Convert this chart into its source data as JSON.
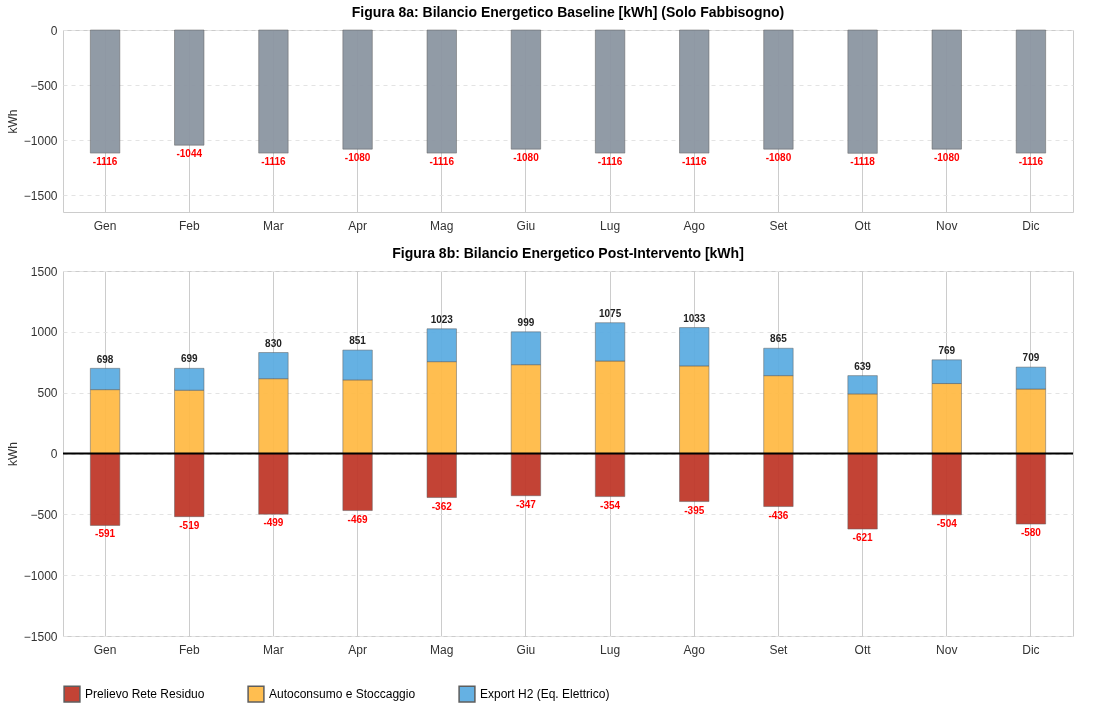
{
  "chart_data": [
    {
      "type": "bar",
      "title": "Figura 8a: Bilancio Energetico Baseline [kWh] (Solo Fabbisogno)",
      "ylabel": "kWh",
      "categories": [
        "Gen",
        "Feb",
        "Mar",
        "Apr",
        "Mag",
        "Giu",
        "Lug",
        "Ago",
        "Set",
        "Ott",
        "Nov",
        "Dic"
      ],
      "series": [
        {
          "color": "#8c96a2",
          "values": [
            -1116,
            -1044,
            -1116,
            -1080,
            -1116,
            -1080,
            -1116,
            -1116,
            -1080,
            -1118,
            -1080,
            -1116
          ]
        }
      ],
      "ylim": [
        -1650,
        0
      ],
      "yticks": [
        -1500,
        -1000,
        -500,
        0
      ],
      "grid": true,
      "data_labels": true,
      "legend": false
    },
    {
      "type": "bar",
      "title": "Figura 8b: Bilancio Energetico Post-Intervento [kWh]",
      "ylabel": "kWh",
      "stacked": true,
      "categories": [
        "Gen",
        "Feb",
        "Mar",
        "Apr",
        "Mag",
        "Giu",
        "Lug",
        "Ago",
        "Set",
        "Ott",
        "Nov",
        "Dic"
      ],
      "series": [
        {
          "name": "Prelievo Rete Residuo",
          "color": "#c0392b",
          "values": [
            -591,
            -519,
            -499,
            -469,
            -362,
            -347,
            -354,
            -395,
            -436,
            -621,
            -504,
            -580
          ],
          "value_labels": [
            "-591",
            "-519",
            "-499",
            "-469",
            "-362",
            "-347",
            "-354",
            "-395",
            "-436",
            "-621",
            "-504",
            "-580"
          ]
        },
        {
          "name": "Autoconsumo e Stoccaggio",
          "color": "#ffbb47",
          "values": [
            525,
            520,
            615,
            605,
            755,
            730,
            760,
            720,
            640,
            490,
            575,
            530
          ]
        },
        {
          "name": "Export H2 (Eq. Elettrico)",
          "color": "#5dade2",
          "values": [
            175,
            180,
            215,
            245,
            270,
            270,
            315,
            315,
            225,
            150,
            195,
            180
          ]
        }
      ],
      "annotations": [
        {
          "text": "698",
          "x": "Gen",
          "y": 698
        },
        {
          "text": "699",
          "x": "Feb",
          "y": 699
        },
        {
          "text": "830",
          "x": "Mar",
          "y": 830
        },
        {
          "text": "851",
          "x": "Apr",
          "y": 851
        },
        {
          "text": "1023",
          "x": "Mag",
          "y": 1023
        },
        {
          "text": "999",
          "x": "Giu",
          "y": 999
        },
        {
          "text": "1075",
          "x": "Lug",
          "y": 1075
        },
        {
          "text": "1033",
          "x": "Ago",
          "y": 1033
        },
        {
          "text": "865",
          "x": "Set",
          "y": 865
        },
        {
          "text": "639",
          "x": "Ott",
          "y": 639
        },
        {
          "text": "769",
          "x": "Nov",
          "y": 769
        },
        {
          "text": "709",
          "x": "Dic",
          "y": 709
        }
      ],
      "ref_lines": [
        {
          "axis": "y",
          "value": 0,
          "color": "#000000"
        }
      ],
      "ylim": [
        -1500,
        1500
      ],
      "yticks": [
        -1500,
        -1000,
        -500,
        0,
        500,
        1000,
        1500
      ],
      "grid": true,
      "legend": "bottom"
    }
  ]
}
